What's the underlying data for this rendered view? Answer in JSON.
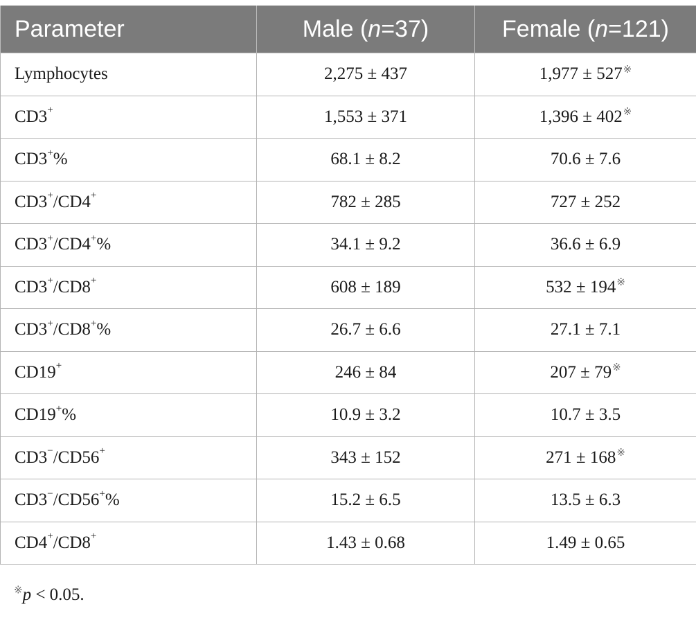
{
  "table": {
    "headers": [
      "Parameter",
      "Male (",
      "n",
      "=37)",
      "Female (",
      "n",
      "=121)"
    ],
    "header_parts": {
      "param": "Parameter",
      "male_pre": "Male (",
      "male_n": "n",
      "male_post": "=37)",
      "female_pre": "Female (",
      "female_n": "n",
      "female_post": "=121)"
    },
    "rows": [
      {
        "parts": [
          {
            "t": "Lymphocytes",
            "s": false
          }
        ],
        "male": "2,275 ± 437",
        "female": "1,977 ± 527",
        "female_sig": true
      },
      {
        "parts": [
          {
            "t": "CD3",
            "s": false
          },
          {
            "t": "+",
            "s": true
          }
        ],
        "male": "1,553 ± 371",
        "female": "1,396 ± 402",
        "female_sig": true
      },
      {
        "parts": [
          {
            "t": "CD3",
            "s": false
          },
          {
            "t": "+",
            "s": true
          },
          {
            "t": "%",
            "s": false
          }
        ],
        "male": "68.1 ± 8.2",
        "female": "70.6 ± 7.6",
        "female_sig": false
      },
      {
        "parts": [
          {
            "t": "CD3",
            "s": false
          },
          {
            "t": "+",
            "s": true
          },
          {
            "t": "/CD4",
            "s": false
          },
          {
            "t": "+",
            "s": true
          }
        ],
        "male": "782 ± 285",
        "female": "727 ± 252",
        "female_sig": false
      },
      {
        "parts": [
          {
            "t": "CD3",
            "s": false
          },
          {
            "t": "+",
            "s": true
          },
          {
            "t": "/CD4",
            "s": false
          },
          {
            "t": "+",
            "s": true
          },
          {
            "t": "%",
            "s": false
          }
        ],
        "male": "34.1 ± 9.2",
        "female": "36.6 ± 6.9",
        "female_sig": false
      },
      {
        "parts": [
          {
            "t": "CD3",
            "s": false
          },
          {
            "t": "+",
            "s": true
          },
          {
            "t": "/CD8",
            "s": false
          },
          {
            "t": "+",
            "s": true
          }
        ],
        "male": "608 ± 189",
        "female": "532 ± 194",
        "female_sig": true
      },
      {
        "parts": [
          {
            "t": "CD3",
            "s": false
          },
          {
            "t": "+",
            "s": true
          },
          {
            "t": "/CD8",
            "s": false
          },
          {
            "t": "+",
            "s": true
          },
          {
            "t": "%",
            "s": false
          }
        ],
        "male": "26.7 ± 6.6",
        "female": "27.1 ± 7.1",
        "female_sig": false
      },
      {
        "parts": [
          {
            "t": "CD19",
            "s": false
          },
          {
            "t": "+",
            "s": true
          }
        ],
        "male": "246 ± 84",
        "female": "207 ± 79",
        "female_sig": true
      },
      {
        "parts": [
          {
            "t": "CD19",
            "s": false
          },
          {
            "t": "+",
            "s": true
          },
          {
            "t": "%",
            "s": false
          }
        ],
        "male": "10.9 ± 3.2",
        "female": "10.7 ± 3.5",
        "female_sig": false
      },
      {
        "parts": [
          {
            "t": "CD3",
            "s": false
          },
          {
            "t": "−",
            "s": true
          },
          {
            "t": "/CD56",
            "s": false
          },
          {
            "t": "+",
            "s": true
          }
        ],
        "male": "343 ± 152",
        "female": "271 ± 168",
        "female_sig": true
      },
      {
        "parts": [
          {
            "t": "CD3",
            "s": false
          },
          {
            "t": "−",
            "s": true
          },
          {
            "t": "/CD56",
            "s": false
          },
          {
            "t": "+",
            "s": true
          },
          {
            "t": "%",
            "s": false
          }
        ],
        "male": "15.2 ± 6.5",
        "female": "13.5 ± 6.3",
        "female_sig": false
      },
      {
        "parts": [
          {
            "t": "CD4",
            "s": false
          },
          {
            "t": "+",
            "s": true
          },
          {
            "t": "/CD8",
            "s": false
          },
          {
            "t": "+",
            "s": true
          }
        ],
        "male": "1.43 ± 0.68",
        "female": "1.49 ± 0.65",
        "female_sig": false
      }
    ],
    "sig_mark": "※"
  },
  "footnote": {
    "symbol": "※",
    "p": "p",
    "text": " < 0.05."
  }
}
